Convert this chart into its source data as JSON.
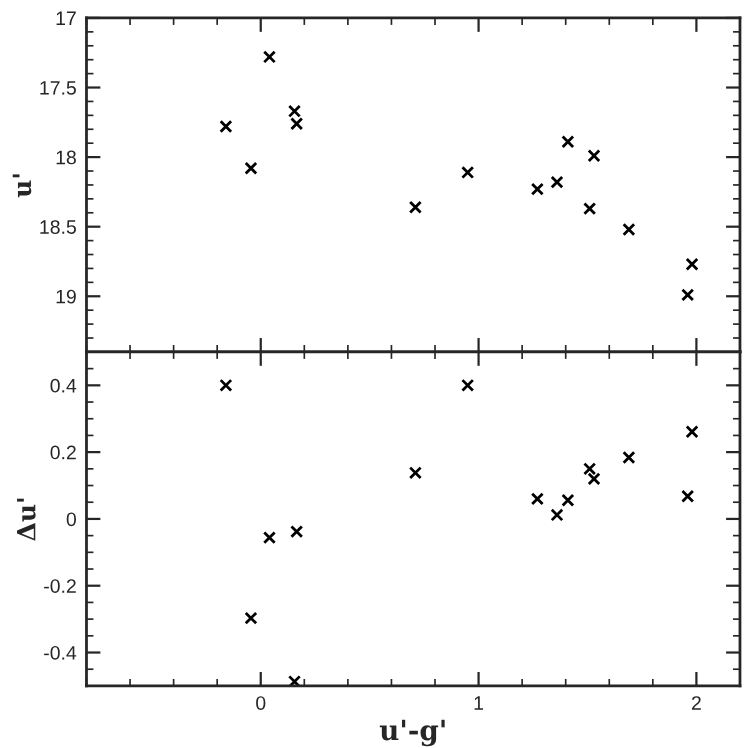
{
  "chart_data": [
    {
      "type": "scatter",
      "ylabel": "u'",
      "marker": "cross",
      "tick_labels": "y",
      "x": [
        -0.16,
        -0.045,
        0.04,
        0.155,
        0.165,
        0.71,
        0.95,
        1.27,
        1.36,
        1.41,
        1.51,
        1.53,
        1.69,
        1.96,
        1.98
      ],
      "series": [
        {
          "color": "#000000",
          "values": [
            17.78,
            18.08,
            17.28,
            17.67,
            17.76,
            18.36,
            18.11,
            18.23,
            18.18,
            17.89,
            18.37,
            17.99,
            18.52,
            18.99,
            18.77
          ]
        }
      ],
      "xlim": [
        -0.8,
        2.2
      ],
      "xticks": [
        {
          "value": -0.8,
          "label": null
        },
        {
          "value": -0.6,
          "label": null
        },
        {
          "value": -0.4,
          "label": null
        },
        {
          "value": -0.2,
          "label": null
        },
        0,
        {
          "value": 0.2,
          "label": null
        },
        {
          "value": 0.4,
          "label": null
        },
        {
          "value": 0.6,
          "label": null
        },
        {
          "value": 0.8,
          "label": null
        },
        1,
        {
          "value": 1.2,
          "label": null
        },
        {
          "value": 1.4,
          "label": null
        },
        {
          "value": 1.6,
          "label": null
        },
        {
          "value": 1.8,
          "label": null
        },
        2,
        {
          "value": 2.2,
          "label": null
        }
      ],
      "ylim": [
        19.4,
        17
      ],
      "yticks": [
        17,
        {
          "value": 17.1,
          "label": null
        },
        {
          "value": 17.2,
          "label": null
        },
        {
          "value": 17.3,
          "label": null
        },
        {
          "value": 17.4,
          "label": null
        },
        17.5,
        {
          "value": 17.6,
          "label": null
        },
        {
          "value": 17.7,
          "label": null
        },
        {
          "value": 17.8,
          "label": null
        },
        {
          "value": 17.9,
          "label": null
        },
        18,
        {
          "value": 18.1,
          "label": null
        },
        {
          "value": 18.2,
          "label": null
        },
        {
          "value": 18.3,
          "label": null
        },
        {
          "value": 18.4,
          "label": null
        },
        18.5,
        {
          "value": 18.6,
          "label": null
        },
        {
          "value": 18.7,
          "label": null
        },
        {
          "value": 18.8,
          "label": null
        },
        {
          "value": 18.9,
          "label": null
        },
        19,
        {
          "value": 19.1,
          "label": null
        },
        {
          "value": 19.2,
          "label": null
        },
        {
          "value": 19.3,
          "label": null
        }
      ]
    },
    {
      "type": "scatter",
      "ylabel": "Δu'",
      "xlabel": "u'-g'",
      "marker": "cross",
      "x": [
        -0.16,
        -0.045,
        0.04,
        0.155,
        0.165,
        0.71,
        0.95,
        1.27,
        1.36,
        1.41,
        1.51,
        1.53,
        1.69,
        1.96,
        1.98
      ],
      "series": [
        {
          "color": "#000000",
          "values": [
            0.4,
            -0.297,
            -0.056,
            -0.487,
            -0.038,
            0.138,
            0.4,
            0.06,
            0.012,
            0.056,
            0.15,
            0.12,
            0.184,
            0.068,
            0.261
          ]
        }
      ],
      "xlim": [
        -0.8,
        2.2
      ],
      "xticks": [
        {
          "value": -0.8,
          "label": null
        },
        {
          "value": -0.6,
          "label": null
        },
        {
          "value": -0.4,
          "label": null
        },
        {
          "value": -0.2,
          "label": null
        },
        0,
        {
          "value": 0.2,
          "label": null
        },
        {
          "value": 0.4,
          "label": null
        },
        {
          "value": 0.6,
          "label": null
        },
        {
          "value": 0.8,
          "label": null
        },
        1,
        {
          "value": 1.2,
          "label": null
        },
        {
          "value": 1.4,
          "label": null
        },
        {
          "value": 1.6,
          "label": null
        },
        {
          "value": 1.8,
          "label": null
        },
        2,
        {
          "value": 2.2,
          "label": null
        }
      ],
      "ylim": [
        -0.5,
        0.5
      ],
      "yticks": [
        {
          "value": -0.45,
          "label": null
        },
        -0.4,
        {
          "value": -0.35,
          "label": null
        },
        {
          "value": -0.3,
          "label": null
        },
        {
          "value": -0.25,
          "label": null
        },
        -0.2,
        {
          "value": -0.15,
          "label": null
        },
        {
          "value": -0.1,
          "label": null
        },
        {
          "value": -0.05,
          "label": null
        },
        0,
        {
          "value": 0.05,
          "label": null
        },
        {
          "value": 0.1,
          "label": null
        },
        {
          "value": 0.15,
          "label": null
        },
        0.2,
        {
          "value": 0.25,
          "label": null
        },
        {
          "value": 0.3,
          "label": null
        },
        {
          "value": 0.35,
          "label": null
        },
        0.4,
        {
          "value": 0.45,
          "label": null
        }
      ]
    }
  ]
}
